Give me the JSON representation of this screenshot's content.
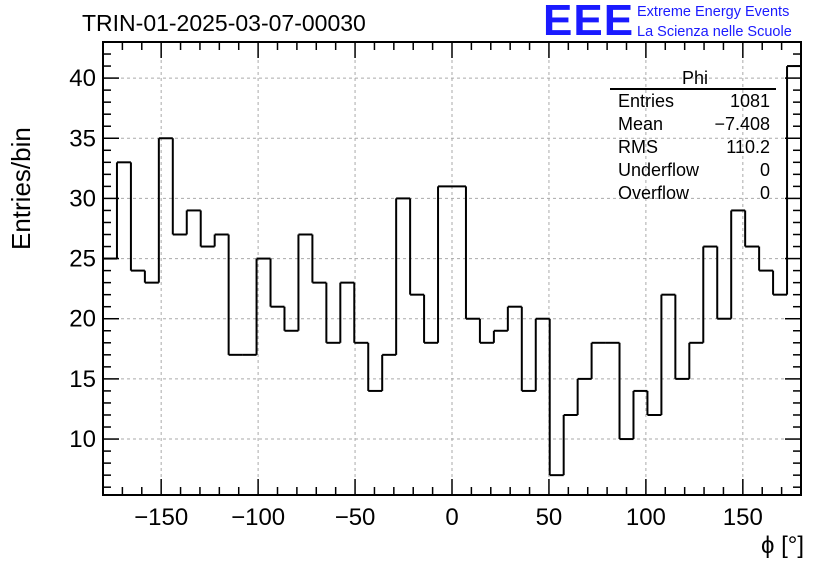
{
  "header": {
    "title": "TRIN-01-2025-03-07-00030",
    "logo_mark": "EEE",
    "logo_line1": "Extreme Energy Events",
    "logo_line2": "La Scienza nelle Scuole"
  },
  "stats_box": {
    "name": "Phi",
    "entries_label": "Entries",
    "entries_value": "1081",
    "mean_label": "Mean",
    "mean_value": "−7.408",
    "rms_label": "RMS",
    "rms_value": "110.2",
    "underflow_label": "Underflow",
    "underflow_value": "0",
    "overflow_label": "Overflow",
    "overflow_value": "0"
  },
  "chart_data": {
    "type": "bar",
    "style": "step-histogram",
    "title": "TRIN-01-2025-03-07-00030",
    "xlabel": "ϕ [°]",
    "ylabel": "Entries/bin",
    "xlim": [
      -180,
      180
    ],
    "ylim": [
      5.35,
      43.0
    ],
    "bin_edges_start": -180,
    "bin_width": 7.2,
    "values": [
      25,
      33,
      24,
      23,
      35,
      27,
      29,
      26,
      27,
      17,
      17,
      25,
      21,
      19,
      27,
      23,
      18,
      23,
      18,
      14,
      17,
      30,
      22,
      18,
      31,
      31,
      20,
      18,
      19,
      21,
      14,
      20,
      7,
      12,
      15,
      18,
      18,
      10,
      14,
      12,
      22,
      15,
      18,
      26,
      20,
      29,
      26,
      24,
      22,
      41
    ],
    "x_ticks": [
      -150,
      -100,
      -50,
      0,
      50,
      100,
      150
    ],
    "x_tick_labels": [
      "−150",
      "−100",
      "−50",
      "0",
      "50",
      "100",
      "150"
    ],
    "y_ticks": [
      10,
      15,
      20,
      25,
      30,
      35,
      40
    ],
    "y_tick_labels": [
      "10",
      "15",
      "20",
      "25",
      "30",
      "35",
      "40"
    ],
    "grid": true,
    "line_color": "#000000",
    "grid_color": "#aaaaaa"
  }
}
